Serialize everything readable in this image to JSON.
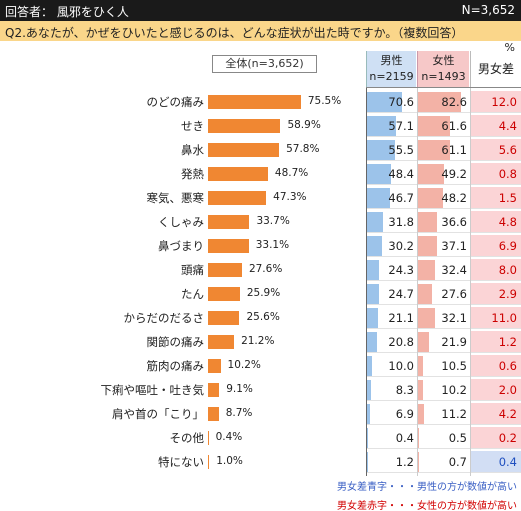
{
  "header": {
    "respondent": "回答者：  風邪をひく人",
    "n": "N=3,652"
  },
  "question": "Q2.あなたが、かぜをひいたと感じるのは、どんな症状が出た時ですか。（複数回答）",
  "unit": "%",
  "total_label": "全体(n=3,652)",
  "columns": {
    "male": {
      "label": "男性",
      "n": "n=2159"
    },
    "female": {
      "label": "女性",
      "n": "n=1493"
    },
    "diff": {
      "label": "男女差"
    }
  },
  "colors": {
    "total_bar": "#f08732",
    "male_bar": "#9cc3ea",
    "female_bar": "#f3b2a6",
    "diff_red_bg": "#fbd4d6",
    "diff_blue_bg": "#d2def4",
    "diff_red_text": "#cc0000",
    "diff_blue_text": "#1f4fbf"
  },
  "chart_data": {
    "type": "bar",
    "categories": [
      "のどの痛み",
      "せき",
      "鼻水",
      "発熱",
      "寒気、悪寒",
      "くしゃみ",
      "鼻づまり",
      "頭痛",
      "たん",
      "からだのだるさ",
      "関節の痛み",
      "筋肉の痛み",
      "下痢や嘔吐・吐き気",
      "肩や首の「こり」",
      "その他",
      "特にない"
    ],
    "series": [
      {
        "name": "全体(n=3,652)",
        "values": [
          75.5,
          58.9,
          57.8,
          48.7,
          47.3,
          33.7,
          33.1,
          27.6,
          25.9,
          25.6,
          21.2,
          10.2,
          9.1,
          8.7,
          0.4,
          1.0
        ]
      },
      {
        "name": "男性",
        "values": [
          70.6,
          57.1,
          55.5,
          48.4,
          46.7,
          31.8,
          30.2,
          24.3,
          24.7,
          21.1,
          20.8,
          10.0,
          8.3,
          6.9,
          0.4,
          1.2
        ]
      },
      {
        "name": "女性",
        "values": [
          82.6,
          61.6,
          61.1,
          49.2,
          48.2,
          36.6,
          37.1,
          32.4,
          27.6,
          32.1,
          21.9,
          10.5,
          10.2,
          11.2,
          0.5,
          0.7
        ]
      }
    ],
    "diff": {
      "values": [
        "12.0",
        "4.4",
        "5.6",
        "0.8",
        "1.5",
        "4.8",
        "6.9",
        "8.0",
        "2.9",
        "11.0",
        "1.2",
        "0.6",
        "2.0",
        "4.2",
        "0.2",
        "0.4"
      ],
      "higher": [
        "female",
        "female",
        "female",
        "female",
        "female",
        "female",
        "female",
        "female",
        "female",
        "female",
        "female",
        "female",
        "female",
        "female",
        "female",
        "male"
      ]
    },
    "value_labels": {
      "total": [
        "75.5%",
        "58.9%",
        "57.8%",
        "48.7%",
        "47.3%",
        "33.7%",
        "33.1%",
        "27.6%",
        "25.9%",
        "25.6%",
        "21.2%",
        "10.2%",
        "9.1%",
        "8.7%",
        "0.4%",
        "1.0%"
      ],
      "male": [
        "70.6",
        "57.1",
        "55.5",
        "48.4",
        "46.7",
        "31.8",
        "30.2",
        "24.3",
        "24.7",
        "21.1",
        "20.8",
        "10.0",
        "8.3",
        "6.9",
        "0.4",
        "1.2"
      ],
      "female": [
        "82.6",
        "61.6",
        "61.1",
        "49.2",
        "48.2",
        "36.6",
        "37.1",
        "32.4",
        "27.6",
        "32.1",
        "21.9",
        "10.5",
        "10.2",
        "11.2",
        "0.5",
        "0.7"
      ]
    },
    "ylim": [
      0,
      100
    ]
  },
  "notes": {
    "blue": "男女差青字・・・男性の方が数値が高い",
    "red": "男女差赤字・・・女性の方が数値が高い"
  }
}
